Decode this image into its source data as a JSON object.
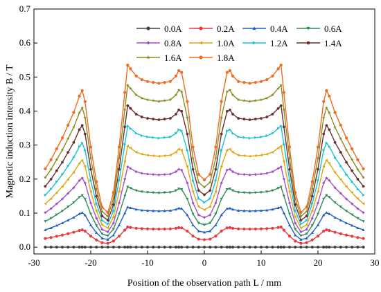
{
  "chart_data": {
    "type": "line",
    "xlabel": "Position of the observation path L / mm",
    "ylabel": "Magnetic induction intensity B / T",
    "xlim": [
      -30,
      30
    ],
    "ylim": [
      -0.02,
      0.7
    ],
    "xticks": [
      "-30",
      "-20",
      "-10",
      "0",
      "10",
      "20",
      "30"
    ],
    "yticks": [
      "0.0",
      "0.1",
      "0.2",
      "0.3",
      "0.4",
      "0.5",
      "0.6",
      "0.7"
    ],
    "grid": false,
    "legend_position": "top-right",
    "x_points": [
      -28,
      -27,
      -26,
      -25,
      -24,
      -23,
      -22,
      -21.5,
      -21,
      -20,
      -19,
      -18,
      -17,
      -16,
      -15,
      -14,
      -13.5,
      -13,
      -12,
      -11,
      -10,
      -9,
      -8,
      -7,
      -6,
      -5,
      -4.5,
      -4,
      -3,
      -2,
      -1,
      0,
      1,
      2,
      3,
      4,
      4.5,
      5,
      6,
      7,
      8,
      9,
      10,
      11,
      12,
      13,
      13.5,
      14,
      15,
      16,
      17,
      18,
      19,
      20,
      21,
      21.5,
      22,
      23,
      24,
      25,
      26,
      27,
      28
    ],
    "shape_profile": [
      0.43,
      0.48,
      0.54,
      0.6,
      0.67,
      0.74,
      0.83,
      0.86,
      0.8,
      0.55,
      0.36,
      0.22,
      0.19,
      0.3,
      0.55,
      0.85,
      1.0,
      0.98,
      0.94,
      0.92,
      0.91,
      0.905,
      0.9,
      0.905,
      0.91,
      0.94,
      0.97,
      0.96,
      0.8,
      0.55,
      0.4,
      0.37,
      0.4,
      0.55,
      0.8,
      0.96,
      0.97,
      0.94,
      0.91,
      0.905,
      0.9,
      0.905,
      0.91,
      0.92,
      0.94,
      0.98,
      1.0,
      0.85,
      0.55,
      0.3,
      0.19,
      0.22,
      0.36,
      0.55,
      0.8,
      0.86,
      0.83,
      0.74,
      0.67,
      0.6,
      0.54,
      0.48,
      0.43
    ],
    "series": [
      {
        "name": "0.0A",
        "peak": 0.0,
        "color": "#3f3f3f",
        "marker": "circle"
      },
      {
        "name": "0.2A",
        "peak": 0.059,
        "color": "#e8393f",
        "marker": "circle"
      },
      {
        "name": "0.4A",
        "peak": 0.118,
        "color": "#1f5fbf",
        "marker": "triangle"
      },
      {
        "name": "0.6A",
        "peak": 0.177,
        "color": "#2e8b57",
        "marker": "triangle-down"
      },
      {
        "name": "0.8A",
        "peak": 0.236,
        "color": "#a44ec6",
        "marker": "diamond"
      },
      {
        "name": "1.0A",
        "peak": 0.297,
        "color": "#e0a50f",
        "marker": "triangle-left"
      },
      {
        "name": "1.2A",
        "peak": 0.356,
        "color": "#14c3cf",
        "marker": "triangle-right"
      },
      {
        "name": "1.4A",
        "peak": 0.416,
        "color": "#6b2d2d",
        "marker": "hexagon"
      },
      {
        "name": "1.6A",
        "peak": 0.476,
        "color": "#8a8a22",
        "marker": "star"
      },
      {
        "name": "1.8A",
        "peak": 0.535,
        "color": "#f06a1f",
        "marker": "circle"
      }
    ]
  }
}
